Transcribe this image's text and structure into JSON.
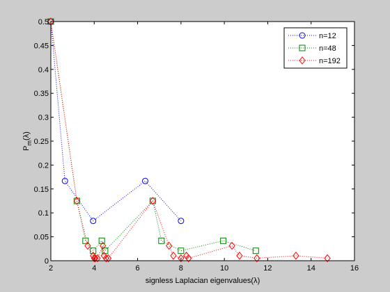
{
  "chart_data": {
    "type": "scatter",
    "xlabel": "signless Laplacian eigenvalues(λ)",
    "ylabel_main": "P",
    "ylabel_sub": "m",
    "ylabel_tail": "(λ)",
    "xlim": [
      2,
      16
    ],
    "ylim": [
      0,
      0.5
    ],
    "xticks": [
      2,
      4,
      6,
      8,
      10,
      12,
      14,
      16
    ],
    "yticks": [
      0,
      0.05,
      0.1,
      0.15,
      0.2,
      0.25,
      0.3,
      0.35,
      0.4,
      0.45,
      0.5
    ],
    "ytick_labels": [
      "0",
      "0.05",
      "0.1",
      "0.15",
      "0.2",
      "0.25",
      "0.3",
      "0.35",
      "0.4",
      "0.45",
      "0.5"
    ],
    "grid": false,
    "legend_position": "top-right",
    "line_style": "dotted",
    "series": [
      {
        "name": "n=12",
        "color": "#0000ff",
        "marker": "circle",
        "points": [
          [
            2.0,
            0.5
          ],
          [
            2.65,
            0.1667
          ],
          [
            3.95,
            0.0833
          ],
          [
            6.35,
            0.1667
          ],
          [
            8.0,
            0.0833
          ]
        ]
      },
      {
        "name": "n=48",
        "color": "#008000",
        "marker": "square",
        "points": [
          [
            2.0,
            0.5
          ],
          [
            3.2,
            0.125
          ],
          [
            3.6,
            0.0417
          ],
          [
            3.95,
            0.0208
          ],
          [
            4.35,
            0.0417
          ],
          [
            4.5,
            0.0208
          ],
          [
            6.7,
            0.125
          ],
          [
            7.1,
            0.0417
          ],
          [
            8.0,
            0.0208
          ],
          [
            9.95,
            0.0417
          ],
          [
            11.45,
            0.0208
          ]
        ]
      },
      {
        "name": "n=192",
        "color": "#ff0000",
        "marker": "diamond",
        "points": [
          [
            2.0,
            0.5
          ],
          [
            3.2,
            0.125
          ],
          [
            3.7,
            0.03125
          ],
          [
            3.95,
            0.0104
          ],
          [
            4.0,
            0.0052
          ],
          [
            4.05,
            0.0052
          ],
          [
            4.15,
            0.0052
          ],
          [
            4.4,
            0.03125
          ],
          [
            4.45,
            0.0104
          ],
          [
            4.55,
            0.0052
          ],
          [
            4.65,
            0.0052
          ],
          [
            6.7,
            0.125
          ],
          [
            7.45,
            0.03125
          ],
          [
            7.65,
            0.0104
          ],
          [
            8.0,
            0.0052
          ],
          [
            8.25,
            0.0104
          ],
          [
            8.35,
            0.0052
          ],
          [
            10.35,
            0.03125
          ],
          [
            10.7,
            0.0104
          ],
          [
            11.5,
            0.0052
          ],
          [
            13.3,
            0.0104
          ],
          [
            14.75,
            0.0052
          ]
        ]
      }
    ]
  }
}
